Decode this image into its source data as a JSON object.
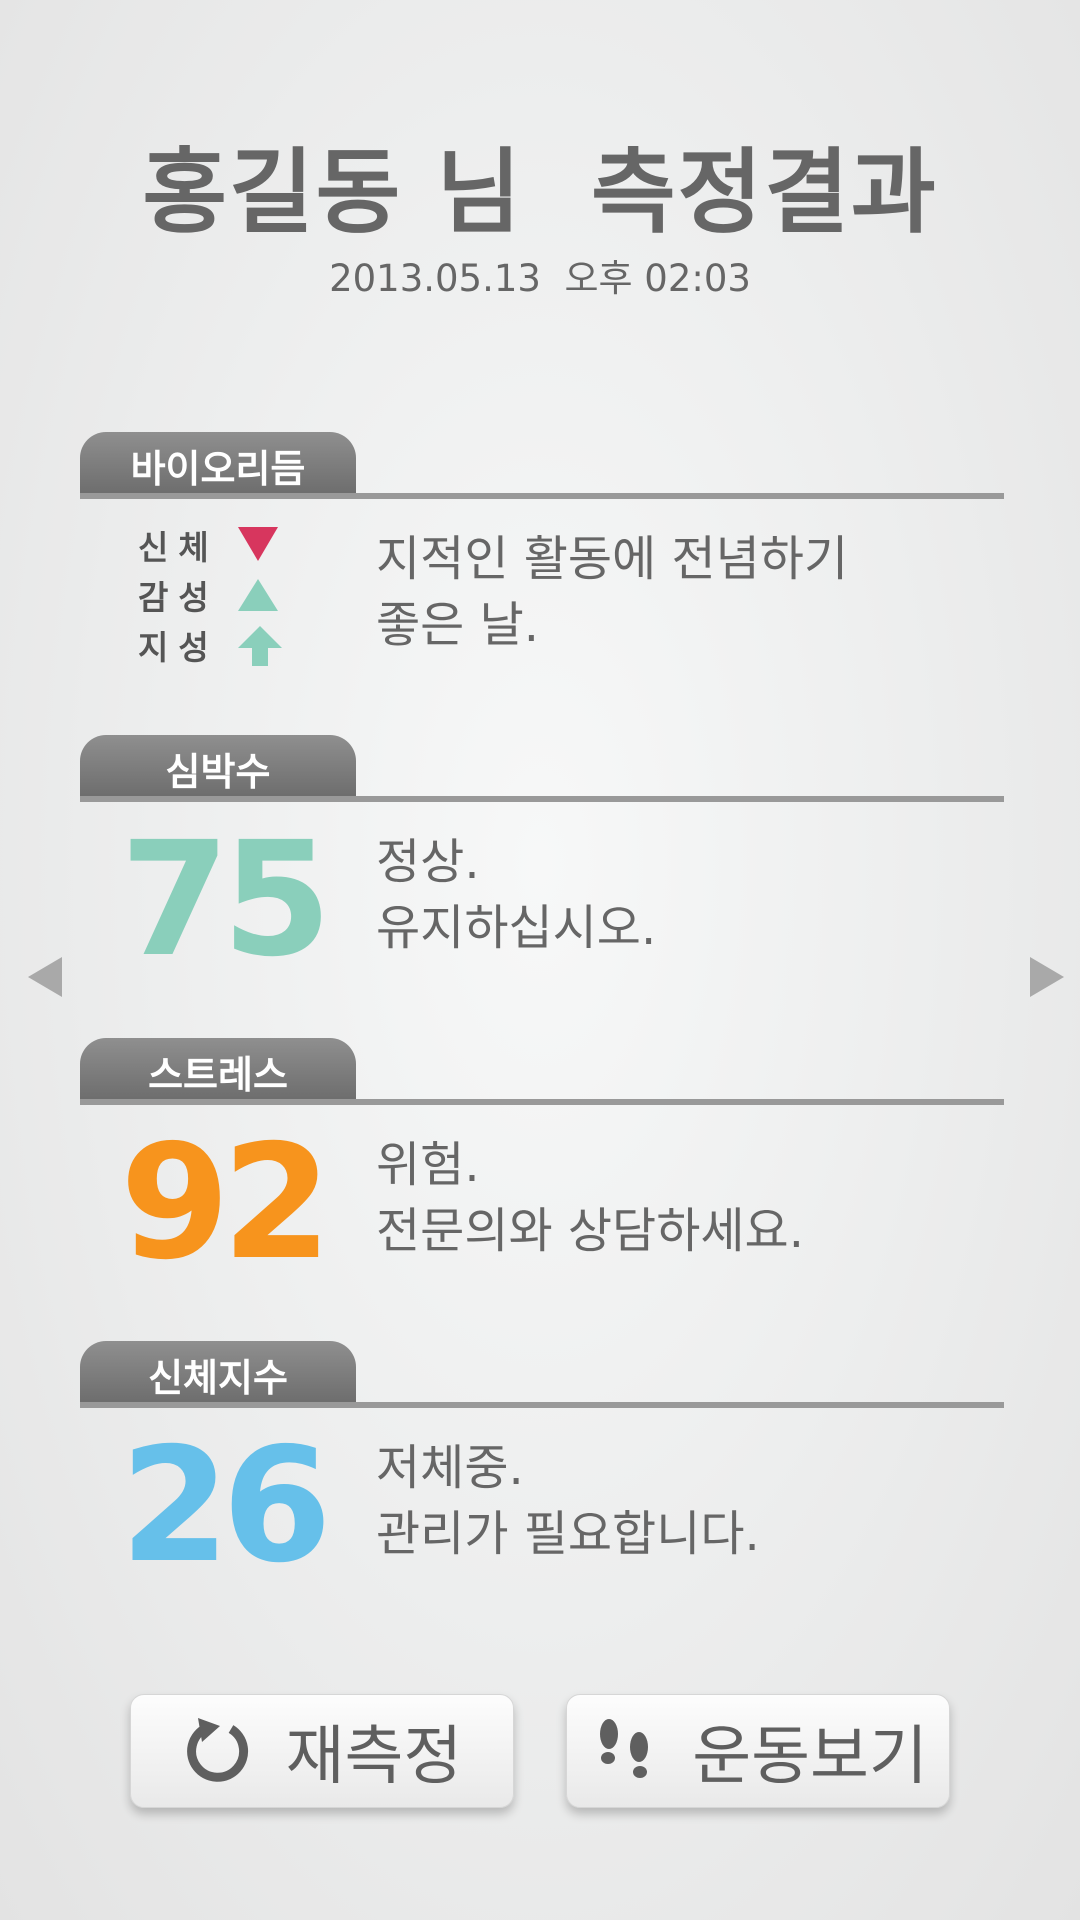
{
  "header": {
    "title": "홍길동 님  측정결과",
    "datetime": "2013.05.13  오후 02:03"
  },
  "biorhythm": {
    "section_label": "바이오리듬",
    "rows": [
      {
        "label": "신체",
        "trend_icon": "triangle-down-icon",
        "color": "#d7365e"
      },
      {
        "label": "감성",
        "trend_icon": "triangle-up-icon",
        "color": "#8acfbb"
      },
      {
        "label": "지성",
        "trend_icon": "arrow-up-icon",
        "color": "#8acfbb"
      }
    ],
    "message_line1": "지적인 활동에 전념하기",
    "message_line2": "좋은 날."
  },
  "heart_rate": {
    "section_label": "심박수",
    "value": "75",
    "color": "#8acfbb",
    "message_line1": "정상.",
    "message_line2": "유지하십시오."
  },
  "stress": {
    "section_label": "스트레스",
    "value": "92",
    "color": "#f7941d",
    "message_line1": "위험.",
    "message_line2": "전문의와 상담하세요."
  },
  "body_index": {
    "section_label": "신체지수",
    "value": "26",
    "color": "#66c0ea",
    "message_line1": "저체중.",
    "message_line2": "관리가 필요합니다."
  },
  "navigation": {
    "prev_icon": "triangle-left-icon",
    "next_icon": "triangle-right-icon"
  },
  "buttons": {
    "remeasure_label": "재측정",
    "remeasure_icon": "refresh-icon",
    "exercise_label": "운동보기",
    "exercise_icon": "footprints-icon"
  }
}
